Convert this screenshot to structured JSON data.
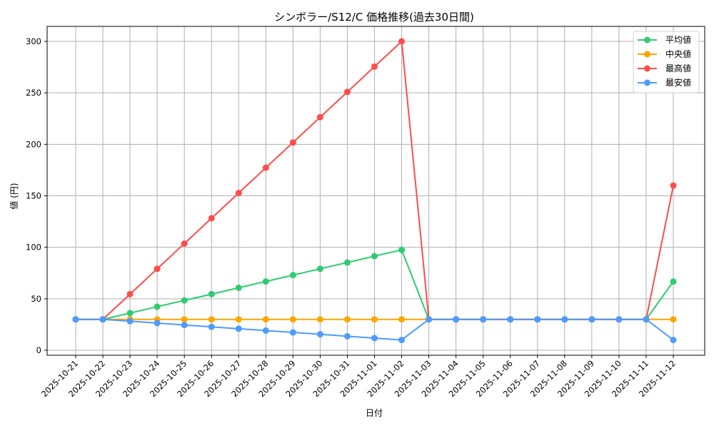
{
  "chart_data": {
    "type": "line",
    "title": "シンボラー/S12/C 価格推移(過去30日間)",
    "xlabel": "日付",
    "ylabel": "値 (円)",
    "ylim": [
      -10,
      315
    ],
    "yticks": [
      0,
      50,
      100,
      150,
      200,
      250,
      300
    ],
    "grid": true,
    "legend_position": "upper right",
    "x": [
      "2025-10-21",
      "2025-10-22",
      "2025-10-23",
      "2025-10-24",
      "2025-10-25",
      "2025-10-26",
      "2025-10-27",
      "2025-10-28",
      "2025-10-29",
      "2025-10-30",
      "2025-10-31",
      "2025-11-01",
      "2025-11-02",
      "2025-11-03",
      "2025-11-04",
      "2025-11-05",
      "2025-11-06",
      "2025-11-07",
      "2025-11-08",
      "2025-11-09",
      "2025-11-10",
      "2025-11-11",
      "2025-11-12"
    ],
    "series": [
      {
        "name": "平均値",
        "color": "#2ecc71",
        "values": [
          30,
          30,
          36.1,
          42.3,
          48.4,
          54.5,
          60.7,
          66.8,
          73.0,
          79.1,
          85.2,
          91.4,
          97.5,
          30,
          30,
          30,
          30,
          30,
          30,
          30,
          30,
          30,
          66.7
        ]
      },
      {
        "name": "中央値",
        "color": "#ffa500",
        "values": [
          30,
          30,
          30,
          30,
          30,
          30,
          30,
          30,
          30,
          30,
          30,
          30,
          30,
          30,
          30,
          30,
          30,
          30,
          30,
          30,
          30,
          30,
          30
        ]
      },
      {
        "name": "最高値",
        "color": "#ff4c4c",
        "values": [
          30,
          30,
          54.5,
          79.1,
          103.6,
          128.2,
          152.7,
          177.3,
          201.8,
          226.4,
          250.9,
          275.5,
          300,
          30,
          30,
          30,
          30,
          30,
          30,
          30,
          30,
          30,
          160
        ]
      },
      {
        "name": "最安値",
        "color": "#4c9bff",
        "values": [
          30,
          30,
          28.2,
          26.4,
          24.5,
          22.7,
          20.9,
          19.1,
          17.3,
          15.5,
          13.6,
          11.8,
          10,
          30,
          30,
          30,
          30,
          30,
          30,
          30,
          30,
          30,
          10
        ]
      }
    ]
  }
}
